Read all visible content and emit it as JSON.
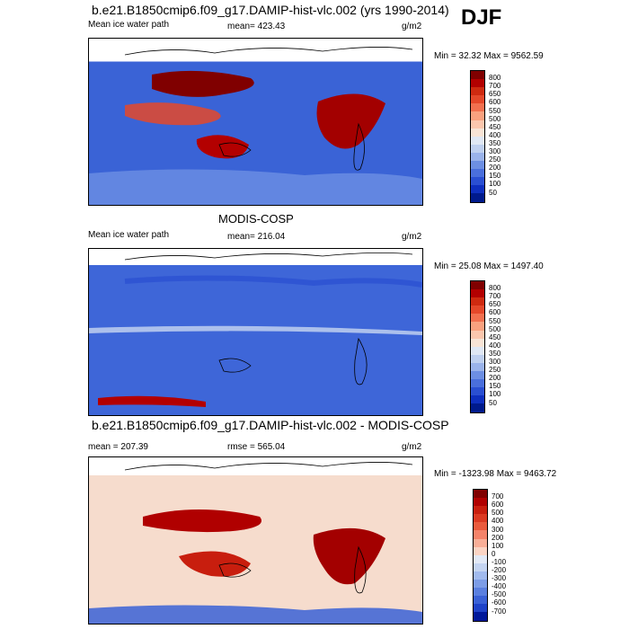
{
  "header": {
    "title": "b.e21.B1850cmip6.f09_g17.DAMIP-hist-vlc.002 (yrs 1990-2014)",
    "season": "DJF"
  },
  "panels": [
    {
      "left_label": "Mean ice water path",
      "stat_label": "mean= 423.43",
      "units": "g/m2",
      "minmax": "Min =  32.32 Max = 9562.59",
      "bg": "#3a63d6"
    },
    {
      "title": "MODIS-COSP",
      "left_label": "Mean ice water path",
      "stat_label": "mean= 216.04",
      "units": "g/m2",
      "minmax": "Min =  25.08 Max = 1497.40",
      "bg": "#3e66d8"
    },
    {
      "title": "b.e21.B1850cmip6.f09_g17.DAMIP-hist-vlc.002 - MODIS-COSP",
      "left_label": "mean = 207.39",
      "stat_label": "rmse = 565.04",
      "units": "g/m2",
      "minmax": "Min = -1323.98 Max = 9463.72",
      "bg": "#f6dccd"
    }
  ],
  "chart_data": [
    {
      "type": "heatmap",
      "title": "Mean ice water path",
      "units": "g/m2",
      "stat": "mean= 423.43",
      "min": 32.32,
      "max": 9562.59,
      "colorbar": {
        "levels": [
          800,
          700,
          650,
          600,
          550,
          500,
          450,
          400,
          350,
          300,
          250,
          200,
          150,
          100,
          50
        ],
        "colors": [
          "#800000",
          "#b30000",
          "#cf2a10",
          "#e5482a",
          "#f2704f",
          "#f9a17f",
          "#fbc7ae",
          "#f8e4d6",
          "#e0e8f5",
          "#bfd0f0",
          "#9ab3eb",
          "#6d8fe3",
          "#4a6fdc",
          "#2a4fd2",
          "#0e2fbf",
          "#001a8c"
        ]
      }
    },
    {
      "type": "heatmap",
      "title": "MODIS-COSP",
      "units": "g/m2",
      "stat": "mean= 216.04",
      "min": 25.08,
      "max": 1497.4,
      "colorbar": {
        "levels": [
          800,
          700,
          650,
          600,
          550,
          500,
          450,
          400,
          350,
          300,
          250,
          200,
          150,
          100,
          50
        ],
        "colors": [
          "#800000",
          "#b30000",
          "#cf2a10",
          "#e5482a",
          "#f2704f",
          "#f9a17f",
          "#fbc7ae",
          "#f8e4d6",
          "#e0e8f5",
          "#bfd0f0",
          "#9ab3eb",
          "#6d8fe3",
          "#4a6fdc",
          "#2a4fd2",
          "#0e2fbf",
          "#001a8c"
        ]
      }
    },
    {
      "type": "heatmap",
      "title": "b.e21.B1850cmip6.f09_g17.DAMIP-hist-vlc.002 - MODIS-COSP",
      "units": "g/m2",
      "stat": "rmse = 565.04",
      "mean": 207.39,
      "min": -1323.98,
      "max": 9463.72,
      "colorbar": {
        "levels": [
          700,
          600,
          500,
          400,
          300,
          200,
          100,
          0,
          -100,
          -200,
          -300,
          -400,
          -500,
          -600,
          -700
        ],
        "colors": [
          "#800000",
          "#b00000",
          "#c81e0e",
          "#db3a22",
          "#ea5a3c",
          "#f4836a",
          "#f9ae97",
          "#fbd4c4",
          "#e2e9f6",
          "#c4d4f1",
          "#a1baed",
          "#7c9ce6",
          "#5a7fdf",
          "#3a61d6",
          "#1e42c8",
          "#00189a"
        ]
      }
    }
  ]
}
